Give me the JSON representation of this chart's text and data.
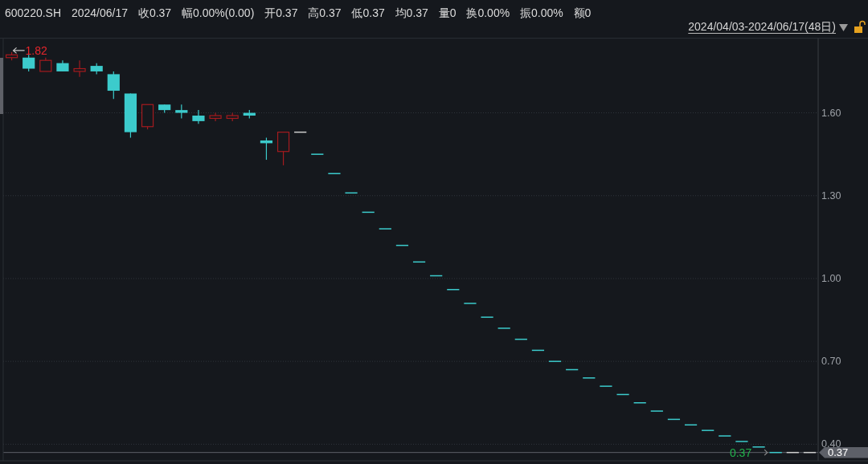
{
  "chart_data": {
    "type": "candlestick",
    "title": "600220.SH 2024/06/17 收0.37 幅0.00%(0.00) 开0.37 高0.37 低0.37 均0.37 量0 换0.00% 振0.00% 额0",
    "subtitle": "2024/04/03-2024/06/17(48日)",
    "annotations": [
      "1.82",
      {
        "text": "0.37",
        "y": 0.37
      }
    ],
    "categories": [
      null,
      null,
      null,
      null,
      null,
      null,
      null,
      null,
      null,
      null,
      null,
      null,
      null,
      null,
      null,
      null,
      null,
      null,
      null,
      null,
      null,
      null,
      null,
      null,
      null,
      null,
      null,
      null,
      null,
      null,
      null,
      null,
      null,
      null,
      null,
      null,
      null,
      null,
      null,
      null,
      null,
      null,
      null,
      null,
      null,
      null,
      null,
      null
    ],
    "ohlc": [
      [
        1.8,
        1.82,
        1.79,
        1.81
      ],
      [
        1.8,
        1.81,
        1.75,
        1.76
      ],
      [
        1.75,
        1.8,
        1.75,
        1.79
      ],
      [
        1.78,
        1.79,
        1.75,
        1.75
      ],
      [
        1.75,
        1.79,
        1.73,
        1.76
      ],
      [
        1.77,
        1.78,
        1.74,
        1.75
      ],
      [
        1.74,
        1.75,
        1.65,
        1.68
      ],
      [
        1.67,
        1.67,
        1.51,
        1.53
      ],
      [
        1.55,
        1.63,
        1.54,
        1.63
      ],
      [
        1.63,
        1.63,
        1.6,
        1.61
      ],
      [
        1.61,
        1.63,
        1.58,
        1.6
      ],
      [
        1.59,
        1.61,
        1.56,
        1.57
      ],
      [
        1.58,
        1.6,
        1.57,
        1.59
      ],
      [
        1.58,
        1.6,
        1.57,
        1.59
      ],
      [
        1.6,
        1.61,
        1.58,
        1.59
      ],
      [
        1.5,
        1.51,
        1.43,
        1.49
      ],
      [
        1.46,
        1.53,
        1.41,
        1.53
      ],
      [
        1.53,
        1.53,
        1.53,
        1.53
      ],
      [
        1.45,
        1.45,
        1.45,
        1.45
      ],
      [
        1.38,
        1.38,
        1.38,
        1.38
      ],
      [
        1.31,
        1.31,
        1.31,
        1.31
      ],
      [
        1.24,
        1.24,
        1.24,
        1.24
      ],
      [
        1.18,
        1.18,
        1.18,
        1.18
      ],
      [
        1.12,
        1.12,
        1.12,
        1.12
      ],
      [
        1.06,
        1.06,
        1.06,
        1.06
      ],
      [
        1.01,
        1.01,
        1.01,
        1.01
      ],
      [
        0.96,
        0.96,
        0.96,
        0.96
      ],
      [
        0.91,
        0.91,
        0.91,
        0.91
      ],
      [
        0.86,
        0.86,
        0.86,
        0.86
      ],
      [
        0.82,
        0.82,
        0.82,
        0.82
      ],
      [
        0.78,
        0.78,
        0.78,
        0.78
      ],
      [
        0.74,
        0.74,
        0.74,
        0.74
      ],
      [
        0.7,
        0.7,
        0.7,
        0.7
      ],
      [
        0.67,
        0.67,
        0.67,
        0.67
      ],
      [
        0.64,
        0.64,
        0.64,
        0.64
      ],
      [
        0.61,
        0.61,
        0.61,
        0.61
      ],
      [
        0.58,
        0.58,
        0.58,
        0.58
      ],
      [
        0.55,
        0.55,
        0.55,
        0.55
      ],
      [
        0.52,
        0.52,
        0.52,
        0.52
      ],
      [
        0.49,
        0.49,
        0.49,
        0.49
      ],
      [
        0.47,
        0.47,
        0.47,
        0.47
      ],
      [
        0.45,
        0.45,
        0.45,
        0.45
      ],
      [
        0.43,
        0.43,
        0.43,
        0.43
      ],
      [
        0.41,
        0.41,
        0.41,
        0.41
      ],
      [
        0.39,
        0.39,
        0.39,
        0.39
      ],
      [
        0.37,
        0.37,
        0.37,
        0.37
      ],
      [
        0.37,
        0.37,
        0.37,
        0.37
      ],
      [
        0.37,
        0.37,
        0.37,
        0.37
      ]
    ],
    "colors": [
      "#a51b1f",
      "#3ccbcc",
      "#a51b1f",
      "#3ccbcc",
      "#a51b1f",
      "#3ccbcc",
      "#3ccbcc",
      "#3ccbcc",
      "#a51b1f",
      "#3ccbcc",
      "#3ccbcc",
      "#3ccbcc",
      "#a51b1f",
      "#a51b1f",
      "#3ccbcc",
      "#3ccbcc",
      "#a51b1f",
      "#cfcfcf",
      "#3ccbcc",
      "#3ccbcc",
      "#3ccbcc",
      "#3ccbcc",
      "#3ccbcc",
      "#3ccbcc",
      "#3ccbcc",
      "#3ccbcc",
      "#3ccbcc",
      "#3ccbcc",
      "#3ccbcc",
      "#3ccbcc",
      "#3ccbcc",
      "#3ccbcc",
      "#3ccbcc",
      "#3ccbcc",
      "#3ccbcc",
      "#3ccbcc",
      "#3ccbcc",
      "#3ccbcc",
      "#3ccbcc",
      "#3ccbcc",
      "#3ccbcc",
      "#3ccbcc",
      "#3ccbcc",
      "#3ccbcc",
      "#3ccbcc",
      "#3ccbcc",
      "#cfcfcf",
      "#cfcfcf"
    ],
    "ylim": [
      0.34,
      1.87
    ],
    "yticks": [
      {
        "value": 0.4,
        "label": "0.40"
      },
      {
        "value": 0.7,
        "label": "0.70"
      },
      {
        "value": 1.0,
        "label": "1.00"
      },
      {
        "value": 1.3,
        "label": "1.30"
      },
      {
        "value": 1.6,
        "label": "1.60"
      }
    ],
    "grid": "y",
    "tick_labels": "y",
    "ref_lines": [
      {
        "axis": "y",
        "value": 0.37,
        "label": "0.37",
        "color": "#5d6068"
      }
    ]
  }
}
